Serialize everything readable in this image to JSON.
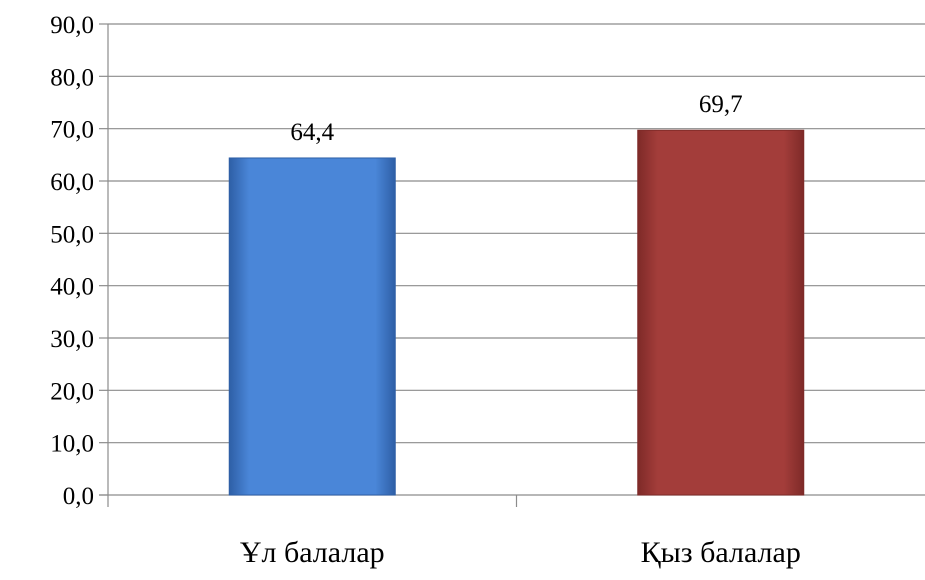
{
  "chart_data": {
    "type": "bar",
    "title": "",
    "xlabel": "",
    "ylabel": "",
    "categories": [
      "Ұл балалар",
      "Қыз балалар"
    ],
    "values": [
      64.4,
      69.7
    ],
    "data_labels": [
      "64,4",
      "69,7"
    ],
    "ylim": [
      0,
      90
    ],
    "y_ticks": [
      0,
      10,
      20,
      30,
      40,
      50,
      60,
      70,
      80,
      90
    ],
    "y_tick_labels": [
      "0,0",
      "10,0",
      "20,0",
      "30,0",
      "40,0",
      "50,0",
      "60,0",
      "70,0",
      "80,0",
      "90,0"
    ],
    "grid": true,
    "legend": "none",
    "bar_colors": [
      "#4a86d8",
      "#a33d3a"
    ],
    "bar_colors_dark": [
      "#2e5fa6",
      "#7e2a28"
    ]
  }
}
